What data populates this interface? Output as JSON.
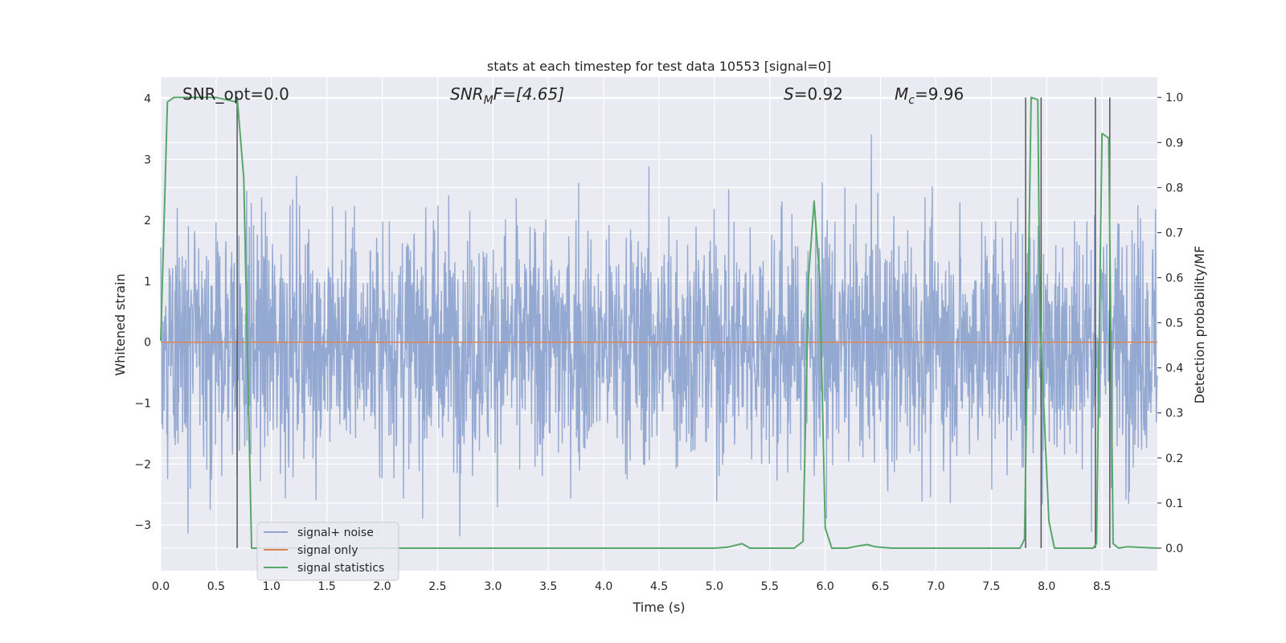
{
  "chart_data": {
    "type": "line",
    "title": "stats at each timestep for test data 10553 [signal=0]",
    "xlabel": "Time (s)",
    "ylabel": "Whitened strain",
    "y2label": "Detection probability/MF",
    "xlim": [
      0.0,
      9.0
    ],
    "ylim": [
      -3.75,
      4.35
    ],
    "y2lim": [
      -0.05,
      1.045
    ],
    "x_ticks": [
      "0.0",
      "0.5",
      "1.0",
      "1.5",
      "2.0",
      "2.5",
      "3.0",
      "3.5",
      "4.0",
      "4.5",
      "5.0",
      "5.5",
      "6.0",
      "6.5",
      "7.0",
      "7.5",
      "8.0",
      "8.5"
    ],
    "y_ticks": [
      "4",
      "3",
      "2",
      "1",
      "0",
      "−1",
      "−2",
      "−3"
    ],
    "y2_ticks": [
      "1.0",
      "0.9",
      "0.8",
      "0.7",
      "0.6",
      "0.5",
      "0.4",
      "0.3",
      "0.2",
      "0.1",
      "0.0"
    ],
    "grid": true,
    "legend_position": "lower-left",
    "annotations": {
      "snr_opt": "SNR_opt=0.0",
      "snr_mf_main": "SNR",
      "snr_mf_sub": "M",
      "snr_mf_rest": "F=[4.65]",
      "s_main": "S",
      "s_rest": "=0.92",
      "mc_main": "M",
      "mc_sub": "c",
      "mc_rest": "=9.96"
    },
    "series": [
      {
        "name": "signal+ noise",
        "color": "#8fa5cf",
        "axis": "left",
        "kind": "noise",
        "amplitude_sigma": 1.0,
        "range": [
          -3.3,
          3.6
        ]
      },
      {
        "name": "signal only",
        "color": "#dd8452",
        "axis": "left",
        "x": [
          0.0,
          9.0
        ],
        "y": [
          0.0,
          0.0
        ]
      },
      {
        "name": "signal statistics",
        "color": "#55a868",
        "axis": "right",
        "x": [
          0.0,
          0.06,
          0.12,
          0.5,
          0.68,
          0.69,
          0.75,
          0.82,
          1.0,
          2.0,
          3.0,
          4.0,
          5.0,
          5.12,
          5.25,
          5.32,
          5.5,
          5.72,
          5.8,
          5.85,
          5.9,
          5.95,
          6.0,
          6.06,
          6.2,
          6.3,
          6.38,
          6.45,
          6.6,
          6.8,
          7.0,
          7.5,
          7.76,
          7.8,
          7.86,
          7.92,
          7.94,
          8.02,
          8.07,
          8.2,
          8.42,
          8.45,
          8.5,
          8.56,
          8.6,
          8.65,
          8.72,
          8.8,
          9.0
        ],
        "y": [
          0.46,
          0.99,
          1.0,
          1.0,
          0.99,
          1.0,
          0.82,
          0.0,
          0.0,
          0.0,
          0.0,
          0.0,
          0.0,
          0.002,
          0.01,
          0.0,
          0.0,
          0.0,
          0.015,
          0.6,
          0.77,
          0.6,
          0.045,
          0.0,
          0.0,
          0.005,
          0.008,
          0.003,
          0.0,
          0.0,
          0.0,
          0.0,
          0.0,
          0.02,
          1.0,
          0.995,
          0.5,
          0.06,
          0.0,
          0.0,
          0.0,
          0.01,
          0.92,
          0.91,
          0.01,
          0.0,
          0.003,
          0.002,
          0.0
        ]
      }
    ],
    "vertical_markers": [
      0.69,
      7.81,
      7.95,
      8.44,
      8.57
    ]
  }
}
